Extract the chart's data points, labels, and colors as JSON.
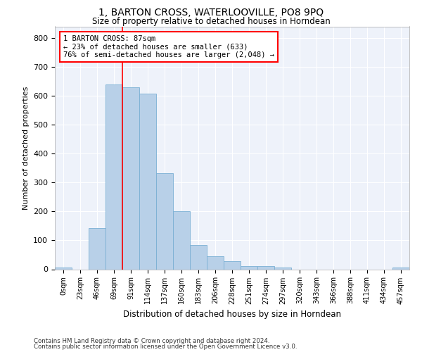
{
  "title": "1, BARTON CROSS, WATERLOOVILLE, PO8 9PQ",
  "subtitle": "Size of property relative to detached houses in Horndean",
  "xlabel": "Distribution of detached houses by size in Horndean",
  "ylabel": "Number of detached properties",
  "bar_color": "#b8d0e8",
  "bar_edge_color": "#7aafd4",
  "background_color": "#eef2fa",
  "grid_color": "#ffffff",
  "categories": [
    "0sqm",
    "23sqm",
    "46sqm",
    "69sqm",
    "91sqm",
    "114sqm",
    "137sqm",
    "160sqm",
    "183sqm",
    "206sqm",
    "228sqm",
    "251sqm",
    "274sqm",
    "297sqm",
    "320sqm",
    "343sqm",
    "366sqm",
    "388sqm",
    "411sqm",
    "434sqm",
    "457sqm"
  ],
  "values": [
    7,
    0,
    142,
    638,
    630,
    607,
    332,
    200,
    83,
    45,
    28,
    10,
    11,
    6,
    0,
    0,
    0,
    0,
    0,
    0,
    5
  ],
  "ylim": [
    0,
    840
  ],
  "yticks": [
    0,
    100,
    200,
    300,
    400,
    500,
    600,
    700,
    800
  ],
  "vline_x": 3.5,
  "annotation_text": "1 BARTON CROSS: 87sqm\n← 23% of detached houses are smaller (633)\n76% of semi-detached houses are larger (2,048) →",
  "annotation_box_color": "white",
  "annotation_box_edge_color": "red",
  "footer_line1": "Contains HM Land Registry data © Crown copyright and database right 2024.",
  "footer_line2": "Contains public sector information licensed under the Open Government Licence v3.0."
}
